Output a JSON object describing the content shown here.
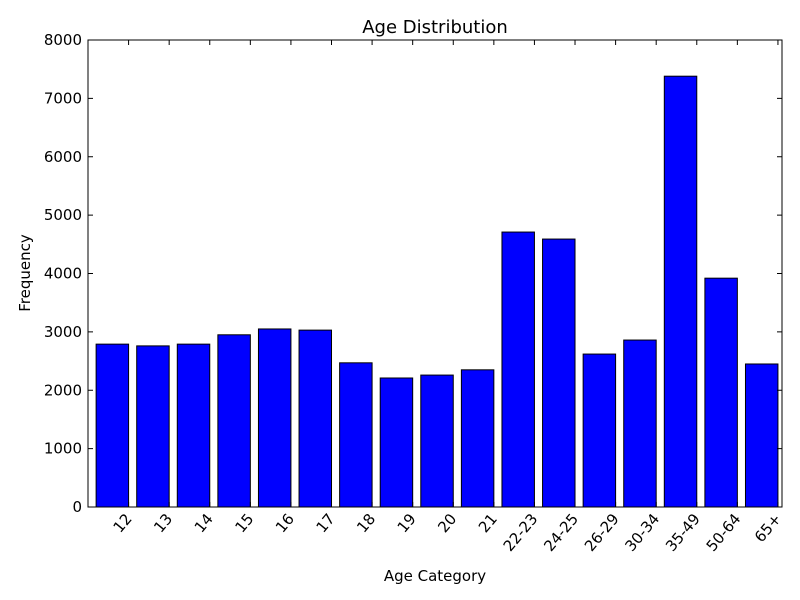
{
  "colors": {
    "bar": "#0000ff",
    "edge": "#000000",
    "axis": "#000000",
    "background": "#ffffff"
  },
  "chart_data": {
    "type": "bar",
    "title": "Age Distribution",
    "xlabel": "Age Category",
    "ylabel": "Frequency",
    "ylim": [
      0,
      8000
    ],
    "yticks": [
      "0",
      "1000",
      "2000",
      "3000",
      "4000",
      "5000",
      "6000",
      "7000",
      "8000"
    ],
    "grid": false,
    "categories": [
      "12",
      "13",
      "14",
      "15",
      "16",
      "17",
      "18",
      "19",
      "20",
      "21",
      "22-23",
      "24-25",
      "26-29",
      "30-34",
      "35-49",
      "50-64",
      "65+"
    ],
    "values": [
      2790,
      2760,
      2790,
      2950,
      3050,
      3030,
      2470,
      2210,
      2260,
      2350,
      4710,
      4590,
      2620,
      2860,
      7380,
      3920,
      2450
    ]
  }
}
